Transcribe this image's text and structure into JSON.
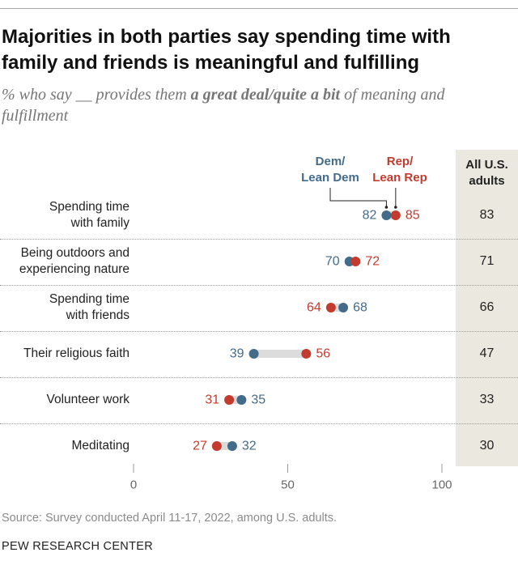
{
  "header": {
    "title": "Majorities in both parties say spending time with family and friends is meaningful and fulfilling",
    "subtitle_prefix": "% who say __ provides them ",
    "subtitle_emphasis": "a great deal/quite a bit",
    "subtitle_suffix": " of meaning and fulfillment"
  },
  "legend": {
    "dem_label_line1": "Dem/",
    "dem_label_line2": "Lean Dem",
    "rep_label_line1": "Rep/",
    "rep_label_line2": "Lean Rep"
  },
  "all_column": {
    "header_line1": "All U.S.",
    "header_line2": "adults"
  },
  "colors": {
    "dem": "#436b8a",
    "rep": "#c33b2e",
    "connector": "#dcdcdc",
    "highlight_column": "#ebe9df"
  },
  "chart_data": {
    "type": "dot",
    "title": "Majorities in both parties say spending time with family and friends is meaningful and fulfilling",
    "xlim": [
      0,
      100
    ],
    "x_ticks": [
      0,
      50,
      100
    ],
    "series_names": [
      "Dem/Lean Dem",
      "Rep/Lean Rep",
      "All U.S. adults"
    ],
    "rows": [
      {
        "label_line1": "Spending time",
        "label_line2": "with family",
        "dem": 82,
        "rep": 85,
        "all": 83
      },
      {
        "label_line1": "Being outdoors and",
        "label_line2": "experiencing nature",
        "dem": 70,
        "rep": 72,
        "all": 71
      },
      {
        "label_line1": "Spending time",
        "label_line2": "with friends",
        "dem": 68,
        "rep": 64,
        "all": 66
      },
      {
        "label_line1": "Their religious faith",
        "label_line2": "",
        "dem": 39,
        "rep": 56,
        "all": 47
      },
      {
        "label_line1": "Volunteer work",
        "label_line2": "",
        "dem": 35,
        "rep": 31,
        "all": 33
      },
      {
        "label_line1": "Meditating",
        "label_line2": "",
        "dem": 32,
        "rep": 27,
        "all": 30
      }
    ]
  },
  "footer": {
    "source": "Source: Survey conducted April 11-17, 2022, among U.S. adults.",
    "organization": "PEW RESEARCH CENTER"
  }
}
